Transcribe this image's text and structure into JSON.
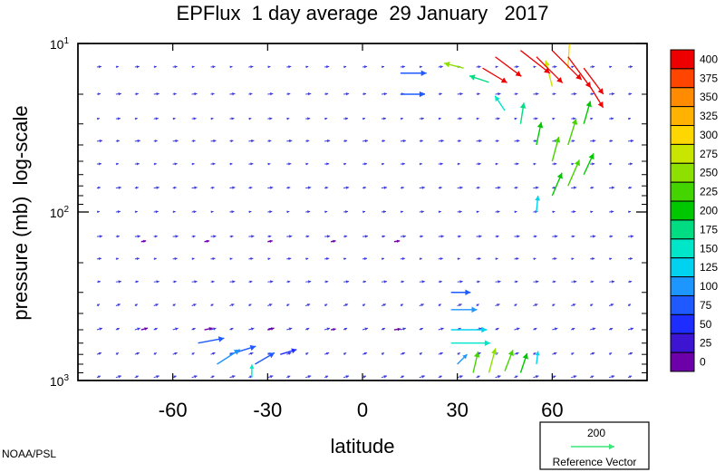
{
  "chart_data": {
    "type": "quiver",
    "title": "EPFlux  1 day average  29 January   2017",
    "xlabel": "latitude",
    "ylabel": "pressure (mb)  log-scale",
    "xlim": [
      -90,
      90
    ],
    "ylim": [
      1000,
      10
    ],
    "y_scale": "log",
    "x_ticks": [
      -60,
      -30,
      0,
      30,
      60
    ],
    "x_tick_labels": [
      "-60",
      "-30",
      "0",
      "30",
      "60"
    ],
    "y_ticks": [
      10,
      100,
      1000
    ],
    "y_tick_labels": [
      {
        "base": "10",
        "exp": "1"
      },
      {
        "base": "10",
        "exp": "2"
      },
      {
        "base": "10",
        "exp": "3"
      }
    ],
    "colorbar": {
      "labels": [
        "400",
        "375",
        "350",
        "325",
        "300",
        "275",
        "250",
        "225",
        "200",
        "175",
        "150",
        "125",
        "100",
        "75",
        "50",
        "25",
        "0"
      ],
      "colors": [
        "#ee0000",
        "#ff4500",
        "#ff8c00",
        "#ffb300",
        "#ffd700",
        "#c8e600",
        "#8ee000",
        "#44d400",
        "#00c800",
        "#00dc82",
        "#00e6c8",
        "#00d2f0",
        "#1e96ff",
        "#1e5aff",
        "#1e2dff",
        "#3c14d2",
        "#6e00aa"
      ]
    },
    "reference_vector": {
      "value": "200",
      "label": "Reference Vector",
      "color": "#3ce67a"
    },
    "credit": "NOAA/PSL",
    "vectors": [
      {
        "lat": -70,
        "p": 150,
        "u": 0.3,
        "v": 0.05,
        "mag": 10
      },
      {
        "lat": -50,
        "p": 150,
        "u": 0.3,
        "v": 0.05,
        "mag": 10
      },
      {
        "lat": -30,
        "p": 150,
        "u": 0.3,
        "v": 0.05,
        "mag": 10
      },
      {
        "lat": -10,
        "p": 150,
        "u": 0.3,
        "v": 0.05,
        "mag": 10
      },
      {
        "lat": 10,
        "p": 150,
        "u": 0.35,
        "v": 0.05,
        "mag": 10
      },
      {
        "lat": -70,
        "p": 500,
        "u": 0.4,
        "v": 0.1,
        "mag": 15
      },
      {
        "lat": -50,
        "p": 500,
        "u": 0.5,
        "v": 0.1,
        "mag": 20
      },
      {
        "lat": -30,
        "p": 500,
        "u": 0.4,
        "v": 0.1,
        "mag": 15
      },
      {
        "lat": -10,
        "p": 500,
        "u": 0.3,
        "v": 0.05,
        "mag": 10
      },
      {
        "lat": 10,
        "p": 500,
        "u": 0.4,
        "v": 0.05,
        "mag": 15
      },
      {
        "lat": 12,
        "p": 15,
        "u": 1.6,
        "v": 0.0,
        "mag": 90
      },
      {
        "lat": 12,
        "p": 20,
        "u": 1.5,
        "v": 0.0,
        "mag": 90
      },
      {
        "lat": -52,
        "p": 600,
        "u": 1.6,
        "v": 0.3,
        "mag": 90
      },
      {
        "lat": -42,
        "p": 700,
        "u": 1.6,
        "v": 0.5,
        "mag": 95
      },
      {
        "lat": -46,
        "p": 800,
        "u": 1.4,
        "v": 0.9,
        "mag": 100
      },
      {
        "lat": -34,
        "p": 800,
        "u": 1.2,
        "v": 0.7,
        "mag": 90
      },
      {
        "lat": -26,
        "p": 700,
        "u": 1.0,
        "v": 0.3,
        "mag": 60
      },
      {
        "lat": 28,
        "p": 600,
        "u": 2.4,
        "v": 0.0,
        "mag": 150
      },
      {
        "lat": 28,
        "p": 500,
        "u": 2.2,
        "v": 0.0,
        "mag": 140
      },
      {
        "lat": 28,
        "p": 380,
        "u": 1.6,
        "v": 0.0,
        "mag": 110
      },
      {
        "lat": 28,
        "p": 300,
        "u": 1.2,
        "v": 0.0,
        "mag": 90
      },
      {
        "lat": 30,
        "p": 800,
        "u": 0.6,
        "v": 0.6,
        "mag": 110
      },
      {
        "lat": 35,
        "p": 900,
        "u": 0.3,
        "v": 1.3,
        "mag": 225
      },
      {
        "lat": 40,
        "p": 900,
        "u": 0.4,
        "v": 1.5,
        "mag": 250
      },
      {
        "lat": 45,
        "p": 880,
        "u": 0.5,
        "v": 1.3,
        "mag": 230
      },
      {
        "lat": 50,
        "p": 900,
        "u": 0.4,
        "v": 1.2,
        "mag": 210
      },
      {
        "lat": 55,
        "p": 800,
        "u": 0.1,
        "v": 0.8,
        "mag": 130
      },
      {
        "lat": -35,
        "p": 960,
        "u": 0.0,
        "v": 0.8,
        "mag": 160
      },
      {
        "lat": 55,
        "p": 100,
        "u": 0.1,
        "v": 1.0,
        "mag": 130
      },
      {
        "lat": 60,
        "p": 80,
        "u": 0.6,
        "v": 1.4,
        "mag": 220
      },
      {
        "lat": 65,
        "p": 70,
        "u": 0.7,
        "v": 1.6,
        "mag": 240
      },
      {
        "lat": 70,
        "p": 60,
        "u": 0.6,
        "v": 1.3,
        "mag": 220
      },
      {
        "lat": 60,
        "p": 50,
        "u": 0.4,
        "v": 1.5,
        "mag": 230
      },
      {
        "lat": 55,
        "p": 40,
        "u": 0.3,
        "v": 1.4,
        "mag": 220
      },
      {
        "lat": 50,
        "p": 30,
        "u": 0.2,
        "v": 1.3,
        "mag": 180
      },
      {
        "lat": 65,
        "p": 40,
        "u": 0.5,
        "v": 1.6,
        "mag": 240
      },
      {
        "lat": 70,
        "p": 30,
        "u": 0.4,
        "v": 1.4,
        "mag": 220
      },
      {
        "lat": 45,
        "p": 25,
        "u": -0.6,
        "v": 0.9,
        "mag": 160
      },
      {
        "lat": 40,
        "p": 17,
        "u": -1.2,
        "v": 0.4,
        "mag": 190
      },
      {
        "lat": 60,
        "p": 18,
        "u": -0.4,
        "v": 1.6,
        "mag": 280
      },
      {
        "lat": 65,
        "p": 14,
        "u": 0.1,
        "v": 1.8,
        "mag": 300
      },
      {
        "lat": 32,
        "p": 14,
        "u": -1.2,
        "v": 0.3,
        "mag": 260
      },
      {
        "lat": 42,
        "p": 12,
        "u": 1.6,
        "v": -1.2,
        "mag": 420
      },
      {
        "lat": 50,
        "p": 11,
        "u": 1.8,
        "v": -1.4,
        "mag": 420
      },
      {
        "lat": 55,
        "p": 12,
        "u": 1.6,
        "v": -1.6,
        "mag": 420
      },
      {
        "lat": 60,
        "p": 11,
        "u": 1.8,
        "v": -1.8,
        "mag": 420
      },
      {
        "lat": 65,
        "p": 12,
        "u": 1.4,
        "v": -1.9,
        "mag": 420
      },
      {
        "lat": 70,
        "p": 14,
        "u": 1.2,
        "v": -1.6,
        "mag": 420
      },
      {
        "lat": 38,
        "p": 14,
        "u": 1.5,
        "v": -0.9,
        "mag": 410
      },
      {
        "lat": 72,
        "p": 18,
        "u": 0.8,
        "v": -1.3,
        "mag": 410
      }
    ]
  }
}
